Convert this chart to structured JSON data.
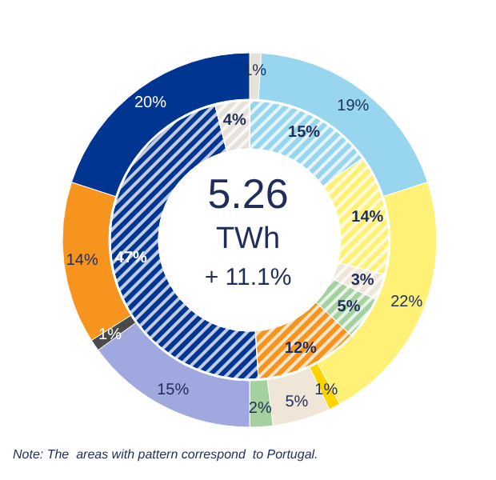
{
  "chart_data": [
    {
      "type": "donut",
      "title": "5.26",
      "subtitle": "TWh",
      "annotations": [
        "+ 11.1%",
        "Note: The  areas with pattern correspond  to Portugal."
      ],
      "categories": [
        null,
        null,
        null,
        null,
        null,
        null,
        null,
        null,
        null,
        null
      ],
      "values": [
        1,
        19,
        22,
        1,
        5,
        2,
        15,
        1,
        14,
        20
      ],
      "value_labels": [
        "1%",
        "19%",
        "22%",
        "1%",
        "5%",
        "2%",
        "15%",
        "1%",
        "14%",
        "20%"
      ],
      "colors": [
        "#e6e2da",
        "#97d6ee",
        "#fff176",
        "#ffd400",
        "#efe6d8",
        "#a5d1a0",
        "#a0a8e0",
        "#4a4a4a",
        "#f7941d",
        "#003591"
      ]
    },
    {
      "type": "donut",
      "categories": [
        null,
        null,
        null,
        null,
        null,
        null,
        null
      ],
      "values": [
        15,
        14,
        3,
        5,
        12,
        47,
        4
      ],
      "value_labels": [
        "15%",
        "14%",
        "3%",
        "5%",
        "12%",
        "47%",
        "4%"
      ],
      "colors": [
        "#97d6ee",
        "#fff176",
        "#efe6d8",
        "#a5d1a0",
        "#f7941d",
        "#003591",
        "#e6e2da"
      ]
    }
  ]
}
